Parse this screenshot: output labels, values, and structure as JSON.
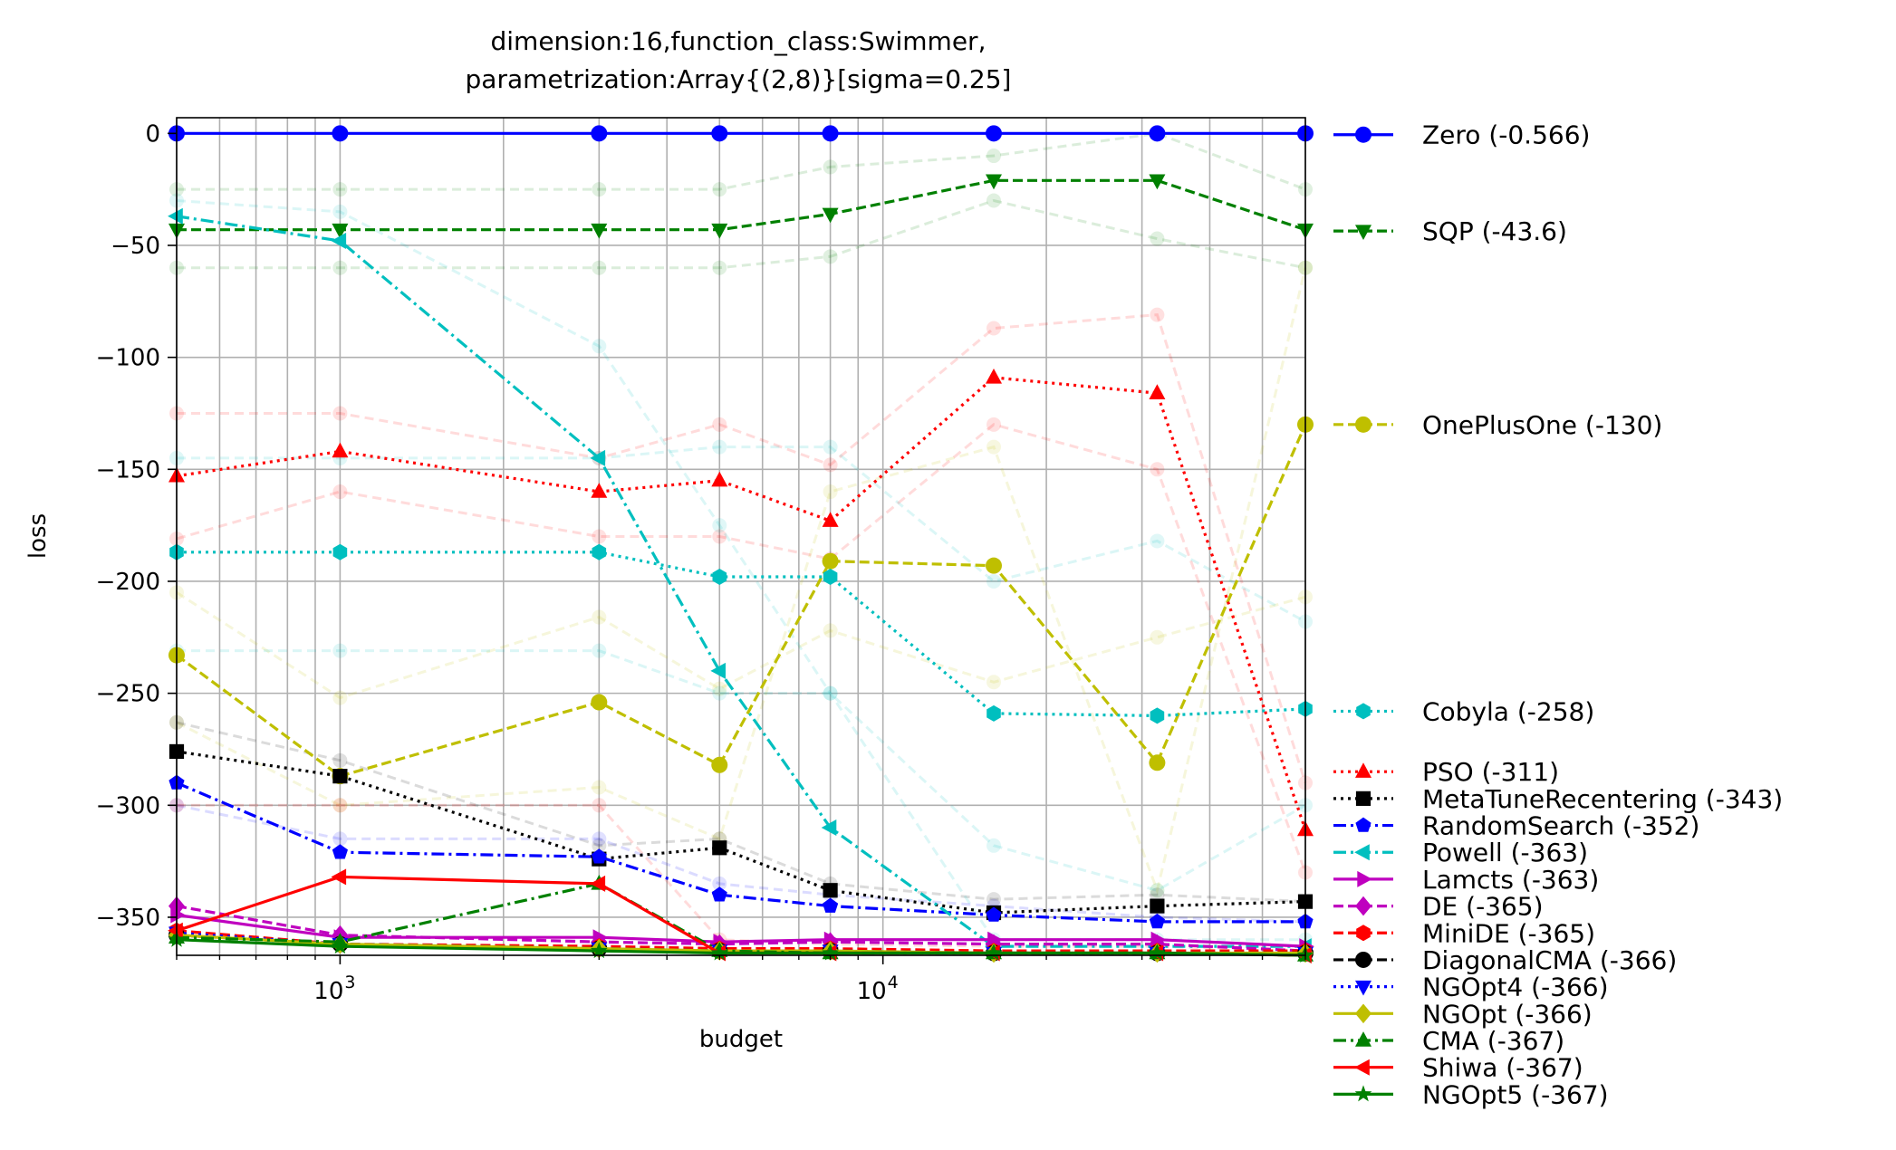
{
  "chart_data": {
    "type": "line",
    "title_lines": [
      "dimension:16,function_class:Swimmer,",
      "parametrization:Array{(2,8)}[sigma=0.25]"
    ],
    "xlabel": "budget",
    "ylabel": "loss",
    "xscale": "log",
    "xlim": [
      500,
      60000
    ],
    "ylim": [
      -367,
      7
    ],
    "grid": true,
    "legend_placement": "right, outside plot",
    "x_ticks": [
      {
        "value": 1000,
        "base": "10",
        "exp": "3"
      },
      {
        "value": 10000,
        "base": "10",
        "exp": "4"
      }
    ],
    "y_ticks": [
      {
        "value": 0,
        "label": "0"
      },
      {
        "value": -50,
        "label": "−50"
      },
      {
        "value": -100,
        "label": "−100"
      },
      {
        "value": -150,
        "label": "−150"
      },
      {
        "value": -200,
        "label": "−200"
      },
      {
        "value": -250,
        "label": "−250"
      },
      {
        "value": -300,
        "label": "−300"
      },
      {
        "value": -350,
        "label": "−350"
      }
    ],
    "x": [
      500,
      1000,
      3000,
      5000,
      8000,
      16000,
      32000,
      60000
    ],
    "series": [
      {
        "name": "Zero (-0.566)",
        "color": "#0000ff",
        "dash": "solid",
        "marker": "circle",
        "legend_y": -0.566,
        "values": [
          0,
          0,
          0,
          0,
          0,
          0,
          0,
          0
        ]
      },
      {
        "name": "SQP (-43.6)",
        "color": "#008000",
        "dash": "dashed",
        "marker": "triangle-down",
        "legend_y": -43.6,
        "values": [
          -43,
          -43,
          -43,
          -43,
          -36,
          -21,
          -21,
          -43
        ]
      },
      {
        "name": "OnePlusOne (-130)",
        "color": "#bfbf00",
        "dash": "dashed",
        "marker": "circle",
        "legend_y": -130,
        "values": [
          -233,
          -287,
          -254,
          -282,
          -191,
          -193,
          -281,
          -130
        ]
      },
      {
        "name": "Cobyla (-258)",
        "color": "#00bfbf",
        "dash": "dotted",
        "marker": "hexagon",
        "legend_y": -258,
        "values": [
          -187,
          -187,
          -187,
          -198,
          -198,
          -259,
          -260,
          -257
        ]
      },
      {
        "name": "PSO (-311)",
        "color": "#ff0000",
        "dash": "dotted",
        "marker": "triangle-up",
        "legend_y": -285,
        "values": [
          -153,
          -142,
          -160,
          -155,
          -173,
          -109,
          -116,
          -311
        ]
      },
      {
        "name": "MetaTuneRecentering (-343)",
        "color": "#000000",
        "dash": "dotted",
        "marker": "square",
        "legend_y": -297,
        "values": [
          -276,
          -287,
          -324,
          -319,
          -338,
          -348,
          -345,
          -343
        ]
      },
      {
        "name": "RandomSearch (-352)",
        "color": "#0000ff",
        "dash": "dashdot",
        "marker": "pentagon",
        "legend_y": -309,
        "values": [
          -290,
          -321,
          -323,
          -340,
          -345,
          -349,
          -352,
          -352
        ]
      },
      {
        "name": "Powell (-363)",
        "color": "#00bfbf",
        "dash": "dashdot",
        "marker": "triangle-left",
        "legend_y": -321,
        "values": [
          -37,
          -48,
          -145,
          -240,
          -310,
          -363,
          -363,
          -363
        ]
      },
      {
        "name": "Lamcts (-363)",
        "color": "#bf00bf",
        "dash": "solid",
        "marker": "triangle-right",
        "legend_y": -333,
        "values": [
          -349,
          -359,
          -359,
          -361,
          -360,
          -360,
          -360,
          -363
        ]
      },
      {
        "name": "DE (-365)",
        "color": "#bf00bf",
        "dash": "dashed",
        "marker": "diamond",
        "legend_y": -345,
        "values": [
          -345,
          -358,
          -361,
          -362,
          -361,
          -362,
          -362,
          -365
        ]
      },
      {
        "name": "MiniDE (-365)",
        "color": "#ff0000",
        "dash": "dashed",
        "marker": "hexagon",
        "legend_y": -357,
        "values": [
          -356,
          -362,
          -363,
          -364,
          -364,
          -365,
          -365,
          -365
        ]
      },
      {
        "name": "DiagonalCMA (-366)",
        "color": "#000000",
        "dash": "dashed",
        "marker": "circle",
        "legend_y": -369,
        "values": [
          -358,
          -362,
          -364,
          -365,
          -365,
          -366,
          -366,
          -366
        ]
      },
      {
        "name": "NGOpt4 (-366)",
        "color": "#0000ff",
        "dash": "dotted",
        "marker": "triangle-down",
        "legend_y": -381,
        "values": [
          -357,
          -362,
          -364,
          -365,
          -365,
          -366,
          -366,
          -366
        ]
      },
      {
        "name": "NGOpt (-366)",
        "color": "#bfbf00",
        "dash": "solid",
        "marker": "diamond",
        "legend_y": -393,
        "values": [
          -358,
          -362,
          -364,
          -365,
          -365,
          -366,
          -366,
          -366
        ]
      },
      {
        "name": "CMA (-367)",
        "color": "#008000",
        "dash": "dashdot",
        "marker": "triangle-up",
        "legend_y": -405,
        "values": [
          -359,
          -361,
          -335,
          -365,
          -366,
          -366,
          -366,
          -367
        ]
      },
      {
        "name": "Shiwa (-367)",
        "color": "#ff0000",
        "dash": "solid",
        "marker": "triangle-left",
        "legend_y": -417,
        "values": [
          -356,
          -332,
          -335,
          -366,
          -366,
          -366,
          -366,
          -367
        ]
      },
      {
        "name": "NGOpt5 (-367)",
        "color": "#008000",
        "dash": "solid",
        "marker": "star",
        "legend_y": -429,
        "values": [
          -360,
          -363,
          -365,
          -366,
          -366,
          -366,
          -366,
          -367
        ]
      }
    ],
    "faint_bands": [
      {
        "color": "#008000",
        "values": [
          -25,
          -25,
          -25,
          -25,
          -15,
          -10,
          0,
          -25
        ]
      },
      {
        "color": "#008000",
        "values": [
          -60,
          -60,
          -60,
          -60,
          -55,
          -30,
          -47,
          -60
        ]
      },
      {
        "color": "#bfbf00",
        "values": [
          -205,
          -252,
          -216,
          -248,
          -222,
          -245,
          -225,
          -207
        ]
      },
      {
        "color": "#bfbf00",
        "values": [
          -263,
          -300,
          -292,
          -315,
          -160,
          -140,
          -338,
          -60
        ]
      },
      {
        "color": "#00bfbf",
        "values": [
          -145,
          -145,
          -145,
          -140,
          -140,
          -200,
          -182,
          -218
        ]
      },
      {
        "color": "#00bfbf",
        "values": [
          -231,
          -231,
          -231,
          -250,
          -250,
          -318,
          -338,
          -300
        ]
      },
      {
        "color": "#ff0000",
        "values": [
          -125,
          -125,
          -145,
          -130,
          -148,
          -87,
          -81,
          -290
        ]
      },
      {
        "color": "#ff0000",
        "values": [
          -181,
          -160,
          -180,
          -180,
          -190,
          -130,
          -150,
          -330
        ]
      },
      {
        "color": "#000000",
        "values": [
          -263,
          -280,
          -318,
          -315,
          -335,
          -342,
          -340,
          -343
        ]
      },
      {
        "color": "#00bfbf",
        "values": [
          -30,
          -35,
          -95,
          -175,
          -250,
          -360,
          -360,
          -360
        ]
      },
      {
        "color": "#0000ff",
        "values": [
          -300,
          -315,
          -315,
          -335,
          -340,
          -345,
          -350,
          -352
        ]
      },
      {
        "color": "#ff0000",
        "values": [
          -300,
          -300,
          -300,
          -360,
          -362,
          -363,
          -363,
          -365
        ]
      }
    ]
  }
}
